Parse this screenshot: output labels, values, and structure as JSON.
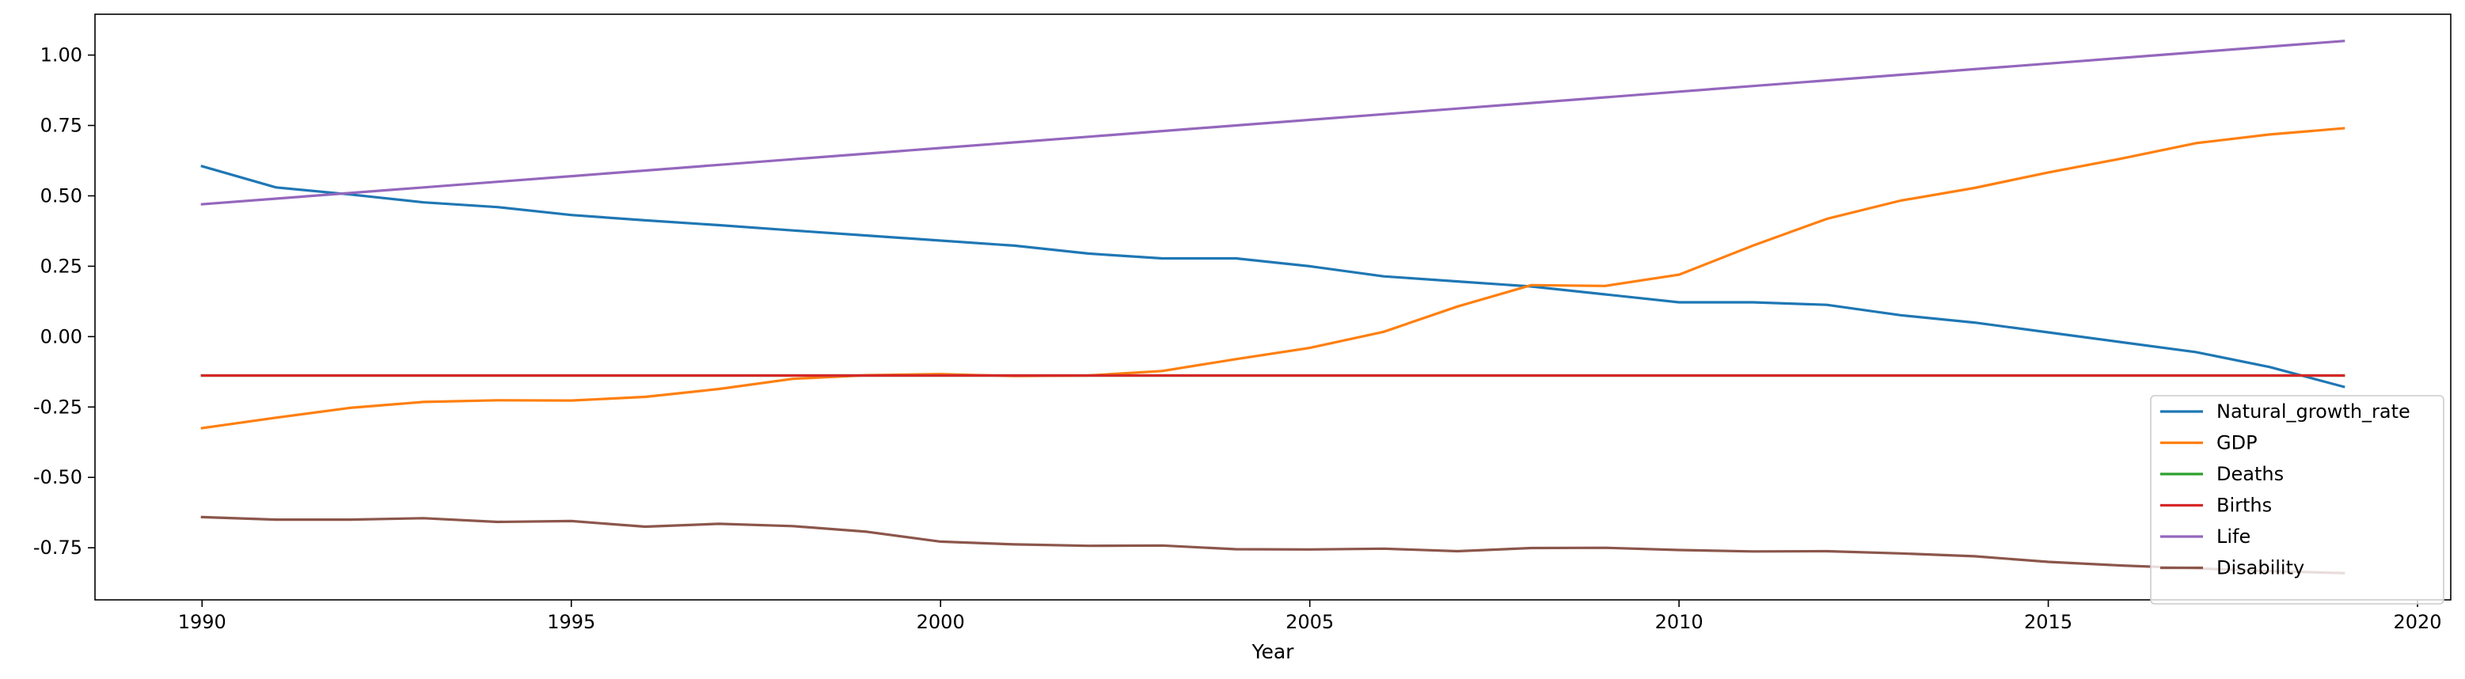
{
  "chart_data": {
    "type": "line",
    "title": "",
    "xlabel": "Year",
    "ylabel": "",
    "xlim": [
      1988.55,
      2020.45
    ],
    "ylim": [
      -0.935,
      1.145
    ],
    "xticks": [
      1990,
      1995,
      2000,
      2005,
      2010,
      2015,
      2020
    ],
    "yticks": [
      -0.75,
      -0.5,
      -0.25,
      0.0,
      0.25,
      0.5,
      0.75,
      1.0
    ],
    "grid": false,
    "legend_position": "bottom-right",
    "x": [
      1990,
      1991,
      1992,
      1993,
      1994,
      1995,
      1996,
      1997,
      1998,
      1999,
      2000,
      2001,
      2002,
      2003,
      2004,
      2005,
      2006,
      2007,
      2008,
      2009,
      2010,
      2011,
      2012,
      2013,
      2014,
      2015,
      2016,
      2017,
      2018,
      2019
    ],
    "series": [
      {
        "name": "Natural_growth_rate",
        "color": "#1f77b4",
        "values": [
          0.605,
          0.53,
          0.505,
          0.477,
          0.46,
          0.432,
          0.413,
          0.396,
          0.377,
          0.359,
          0.341,
          0.323,
          0.295,
          0.278,
          0.278,
          0.25,
          0.214,
          0.196,
          0.178,
          0.15,
          0.122,
          0.122,
          0.113,
          0.076,
          0.05,
          0.015,
          -0.02,
          -0.055,
          -0.108,
          -0.178
        ]
      },
      {
        "name": "GDP",
        "color": "#ff7f0e",
        "values": [
          -0.325,
          -0.288,
          -0.253,
          -0.232,
          -0.226,
          -0.227,
          -0.214,
          -0.186,
          -0.15,
          -0.137,
          -0.133,
          -0.14,
          -0.138,
          -0.122,
          -0.08,
          -0.04,
          0.017,
          0.107,
          0.183,
          0.18,
          0.22,
          0.323,
          0.418,
          0.483,
          0.528,
          0.583,
          0.633,
          0.687,
          0.718,
          0.74
        ]
      },
      {
        "name": "Deaths",
        "color": "#2ca02c",
        "values": [
          -0.138,
          -0.138,
          -0.138,
          -0.138,
          -0.138,
          -0.138,
          -0.138,
          -0.138,
          -0.138,
          -0.138,
          -0.138,
          -0.138,
          -0.138,
          -0.138,
          -0.138,
          -0.138,
          -0.138,
          -0.138,
          -0.138,
          -0.138,
          -0.138,
          -0.138,
          -0.138,
          -0.138,
          -0.138,
          -0.138,
          -0.138,
          -0.138,
          -0.138,
          -0.138
        ]
      },
      {
        "name": "Births",
        "color": "#d62728",
        "values": [
          -0.138,
          -0.138,
          -0.138,
          -0.138,
          -0.138,
          -0.138,
          -0.138,
          -0.138,
          -0.138,
          -0.138,
          -0.138,
          -0.138,
          -0.138,
          -0.138,
          -0.138,
          -0.138,
          -0.138,
          -0.138,
          -0.138,
          -0.138,
          -0.138,
          -0.138,
          -0.138,
          -0.138,
          -0.138,
          -0.138,
          -0.138,
          -0.138,
          -0.138,
          -0.138
        ]
      },
      {
        "name": "Life",
        "color": "#9467bd",
        "values": [
          0.47,
          0.49,
          0.51,
          0.53,
          0.55,
          0.57,
          0.59,
          0.61,
          0.63,
          0.65,
          0.67,
          0.69,
          0.71,
          0.73,
          0.75,
          0.77,
          0.79,
          0.81,
          0.83,
          0.85,
          0.87,
          0.89,
          0.91,
          0.93,
          0.95,
          0.97,
          0.99,
          1.01,
          1.03,
          1.05
        ]
      },
      {
        "name": "Disability",
        "color": "#8c564b",
        "values": [
          -0.641,
          -0.65,
          -0.65,
          -0.645,
          -0.658,
          -0.655,
          -0.675,
          -0.665,
          -0.673,
          -0.693,
          -0.728,
          -0.738,
          -0.743,
          -0.742,
          -0.755,
          -0.756,
          -0.753,
          -0.762,
          -0.751,
          -0.75,
          -0.758,
          -0.763,
          -0.762,
          -0.77,
          -0.78,
          -0.8,
          -0.813,
          -0.823,
          -0.833,
          -0.84
        ]
      }
    ]
  }
}
